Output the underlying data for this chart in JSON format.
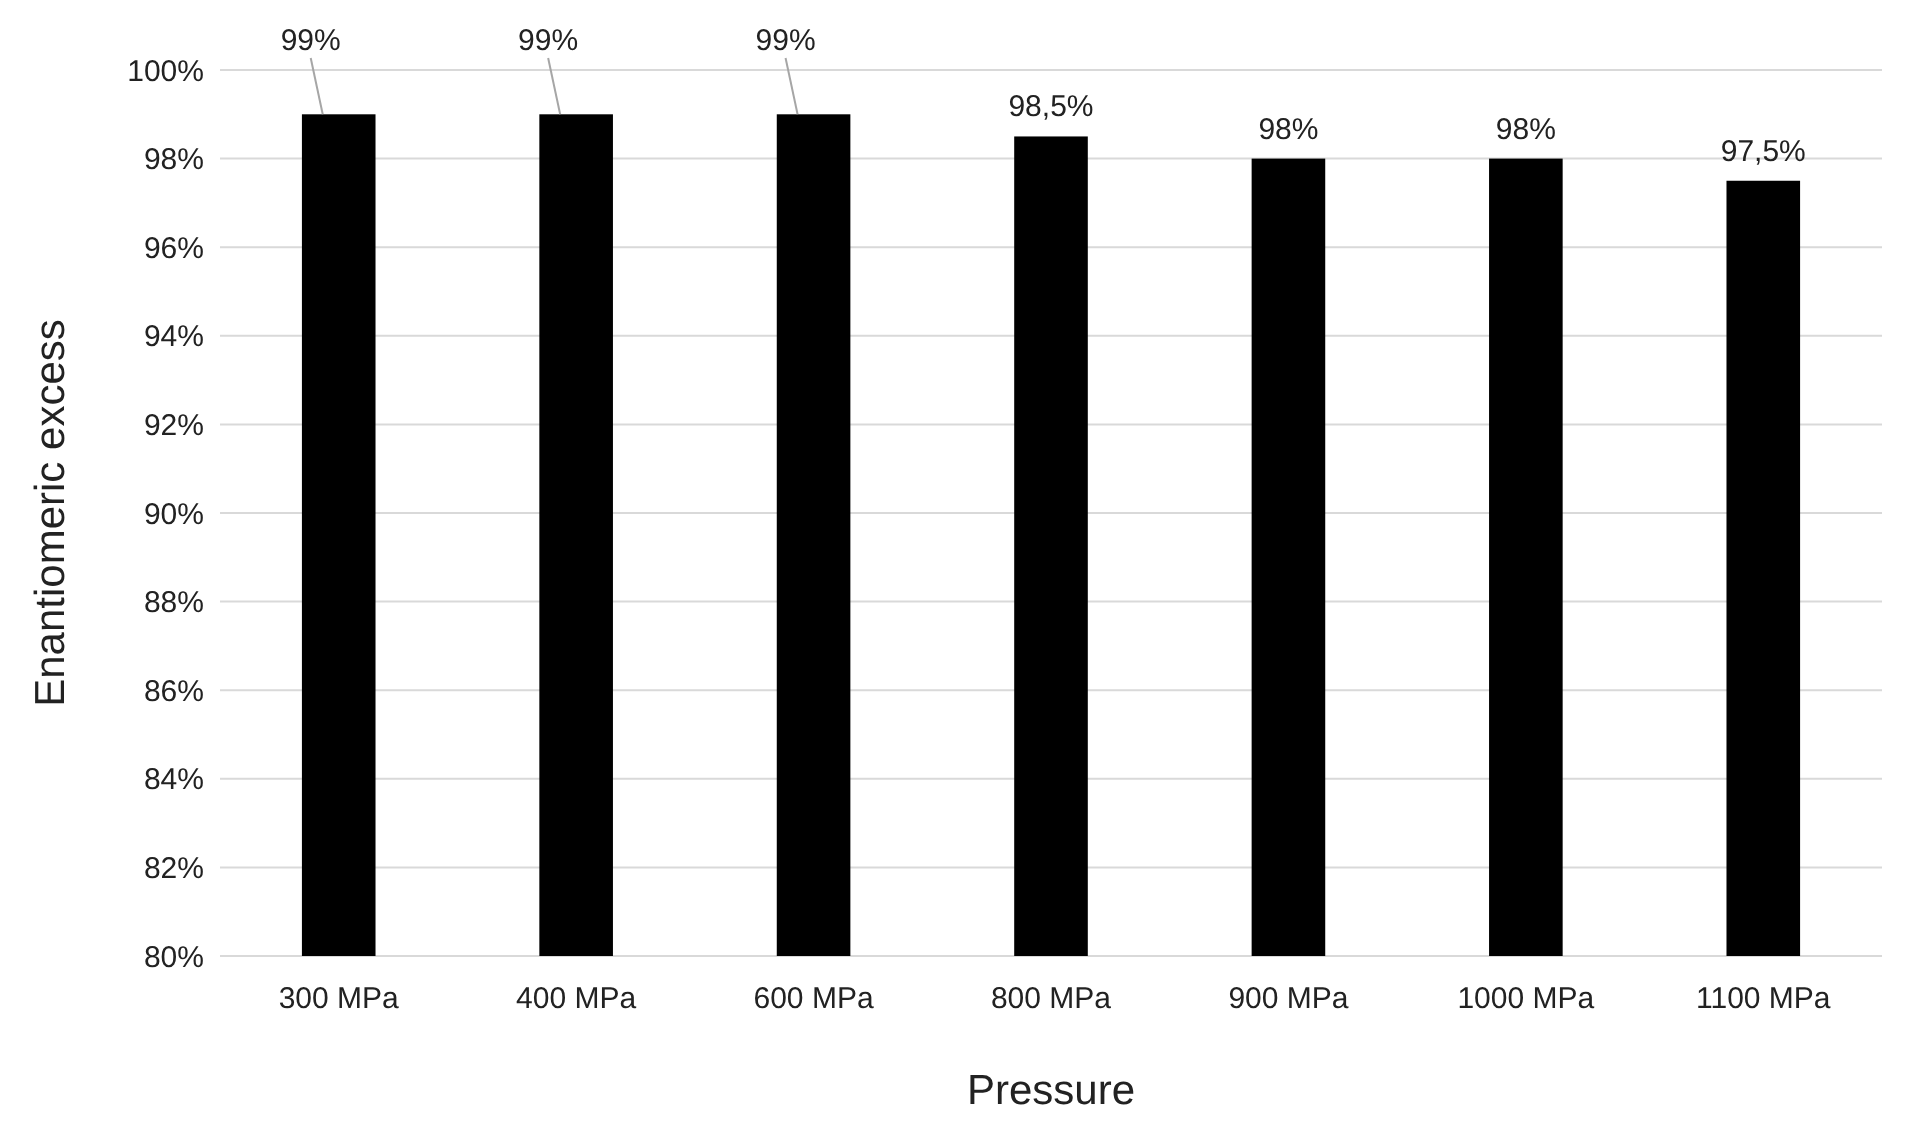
{
  "chart_data": {
    "type": "bar",
    "xlabel": "Pressure",
    "ylabel": "Enantiomeric excess",
    "categories": [
      "300 MPa",
      "400 MPa",
      "600 MPa",
      "800 MPa",
      "900 MPa",
      "1000 MPa",
      "1100 MPa"
    ],
    "values": [
      99,
      99,
      99,
      98.5,
      98,
      98,
      97.5
    ],
    "value_labels": [
      "99%",
      "99%",
      "99%",
      "98,5%",
      "98%",
      "98%",
      "97,5%"
    ],
    "color": "#000000",
    "ylim": [
      80,
      100
    ],
    "yticks": [
      {
        "value": 80,
        "label": "80%"
      },
      {
        "value": 82,
        "label": "82%"
      },
      {
        "value": 84,
        "label": "84%"
      },
      {
        "value": 86,
        "label": "86%"
      },
      {
        "value": 88,
        "label": "88%"
      },
      {
        "value": 90,
        "label": "90%"
      },
      {
        "value": 92,
        "label": "92%"
      },
      {
        "value": 94,
        "label": "94%"
      },
      {
        "value": 96,
        "label": "96%"
      },
      {
        "value": 98,
        "label": "98%"
      },
      {
        "value": 100,
        "label": "100%"
      }
    ],
    "grid": "y"
  }
}
